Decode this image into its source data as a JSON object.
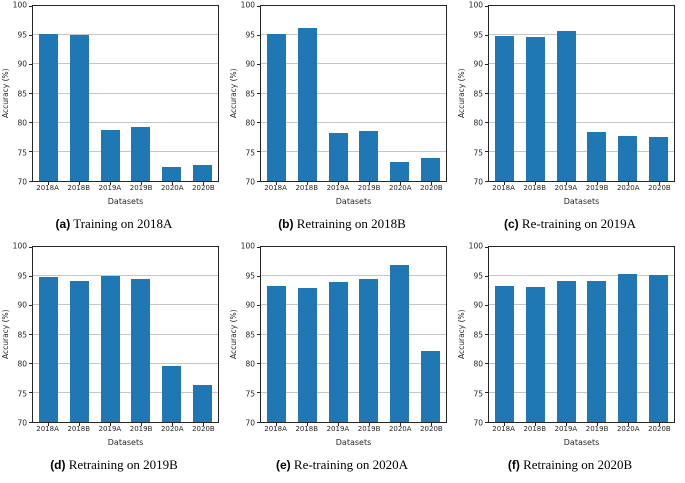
{
  "style": {
    "bar_color": "#1f77b4",
    "grid_color": "#c6c6c6",
    "spine_color": "#262626",
    "text_color": "#1a1a1a"
  },
  "chart_data": [
    {
      "type": "bar",
      "caption_label": "(a)",
      "caption_text": " Training on 2018A",
      "categories": [
        "2018A",
        "2018B",
        "2019A",
        "2019B",
        "2020A",
        "2020B"
      ],
      "values": [
        95.2,
        95.1,
        78.7,
        79.3,
        72.4,
        72.7
      ],
      "title": "",
      "xlabel": "Datasets",
      "ylabel": "Accuracy (%)",
      "ylim": [
        70,
        100
      ],
      "ytick_step": 5,
      "grid": "horizontal",
      "legend": "none"
    },
    {
      "type": "bar",
      "caption_label": "(b)",
      "caption_text": " Retraining on 2018B",
      "categories": [
        "2018A",
        "2018B",
        "2019A",
        "2019B",
        "2020A",
        "2020B"
      ],
      "values": [
        95.2,
        96.3,
        78.2,
        78.6,
        73.3,
        74.0
      ],
      "title": "",
      "xlabel": "Datasets",
      "ylabel": "Accuracy (%)",
      "ylim": [
        70,
        100
      ],
      "ytick_step": 5,
      "grid": "horizontal",
      "legend": "none"
    },
    {
      "type": "bar",
      "caption_label": "(c)",
      "caption_text": " Re-training on 2019A",
      "categories": [
        "2018A",
        "2018B",
        "2019A",
        "2019B",
        "2020A",
        "2020B"
      ],
      "values": [
        94.8,
        94.7,
        95.7,
        78.4,
        77.7,
        77.6
      ],
      "title": "",
      "xlabel": "Datasets",
      "ylabel": "Accuracy (%)",
      "ylim": [
        70,
        100
      ],
      "ytick_step": 5,
      "grid": "horizontal",
      "legend": "none"
    },
    {
      "type": "bar",
      "caption_label": "(d)",
      "caption_text": " Retraining on 2019B",
      "categories": [
        "2018A",
        "2018B",
        "2019A",
        "2019B",
        "2020A",
        "2020B"
      ],
      "values": [
        94.9,
        94.2,
        95.1,
        94.5,
        79.6,
        76.4
      ],
      "title": "",
      "xlabel": "Datasets",
      "ylabel": "Accuracy (%)",
      "ylim": [
        70,
        100
      ],
      "ytick_step": 5,
      "grid": "horizontal",
      "legend": "none"
    },
    {
      "type": "bar",
      "caption_label": "(e)",
      "caption_text": " Re-training on 2020A",
      "categories": [
        "2018A",
        "2018B",
        "2019A",
        "2019B",
        "2020A",
        "2020B"
      ],
      "values": [
        93.4,
        93.0,
        94.0,
        94.6,
        96.9,
        82.1
      ],
      "title": "",
      "xlabel": "Datasets",
      "ylabel": "Accuracy (%)",
      "ylim": [
        70,
        100
      ],
      "ytick_step": 5,
      "grid": "horizontal",
      "legend": "none"
    },
    {
      "type": "bar",
      "caption_label": "(f)",
      "caption_text": " Retraining on 2020B",
      "categories": [
        "2018A",
        "2018B",
        "2019A",
        "2019B",
        "2020A",
        "2020B"
      ],
      "values": [
        93.4,
        93.1,
        94.1,
        94.2,
        95.3,
        95.2
      ],
      "title": "",
      "xlabel": "Datasets",
      "ylabel": "Accuracy (%)",
      "ylim": [
        70,
        100
      ],
      "ytick_step": 5,
      "grid": "horizontal",
      "legend": "none"
    }
  ]
}
